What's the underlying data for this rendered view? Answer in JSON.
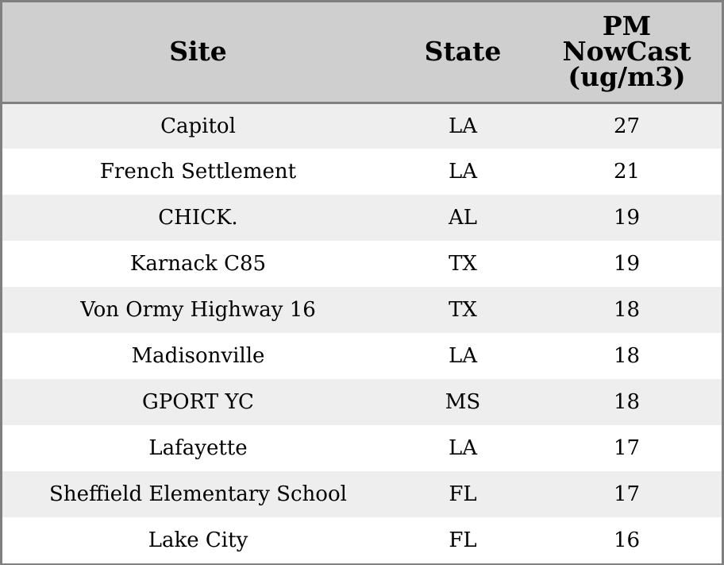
{
  "chart_data": {
    "type": "table",
    "columns": [
      "Site",
      "State",
      "PM NowCast (ug/m3)"
    ],
    "header_lines": {
      "site": "Site",
      "state": "State",
      "pm": [
        "PM",
        "NowCast",
        "(ug/m3)"
      ]
    },
    "rows": [
      {
        "site": "Capitol",
        "state": "LA",
        "pm": 27
      },
      {
        "site": "French Settlement",
        "state": "LA",
        "pm": 21
      },
      {
        "site": "CHICK.",
        "state": "AL",
        "pm": 19
      },
      {
        "site": "Karnack C85",
        "state": "TX",
        "pm": 19
      },
      {
        "site": "Von Ormy Highway 16",
        "state": "TX",
        "pm": 18
      },
      {
        "site": "Madisonville",
        "state": "LA",
        "pm": 18
      },
      {
        "site": "GPORT YC",
        "state": "MS",
        "pm": 18
      },
      {
        "site": "Lafayette",
        "state": "LA",
        "pm": 17
      },
      {
        "site": "Sheffield Elementary School",
        "state": "FL",
        "pm": 17
      },
      {
        "site": "Lake City",
        "state": "FL",
        "pm": 16
      }
    ],
    "colors": {
      "header_bg": "#cfcfcf",
      "stripe_bg": "#eeeeee",
      "row_bg": "#ffffff",
      "border": "#808080"
    }
  }
}
